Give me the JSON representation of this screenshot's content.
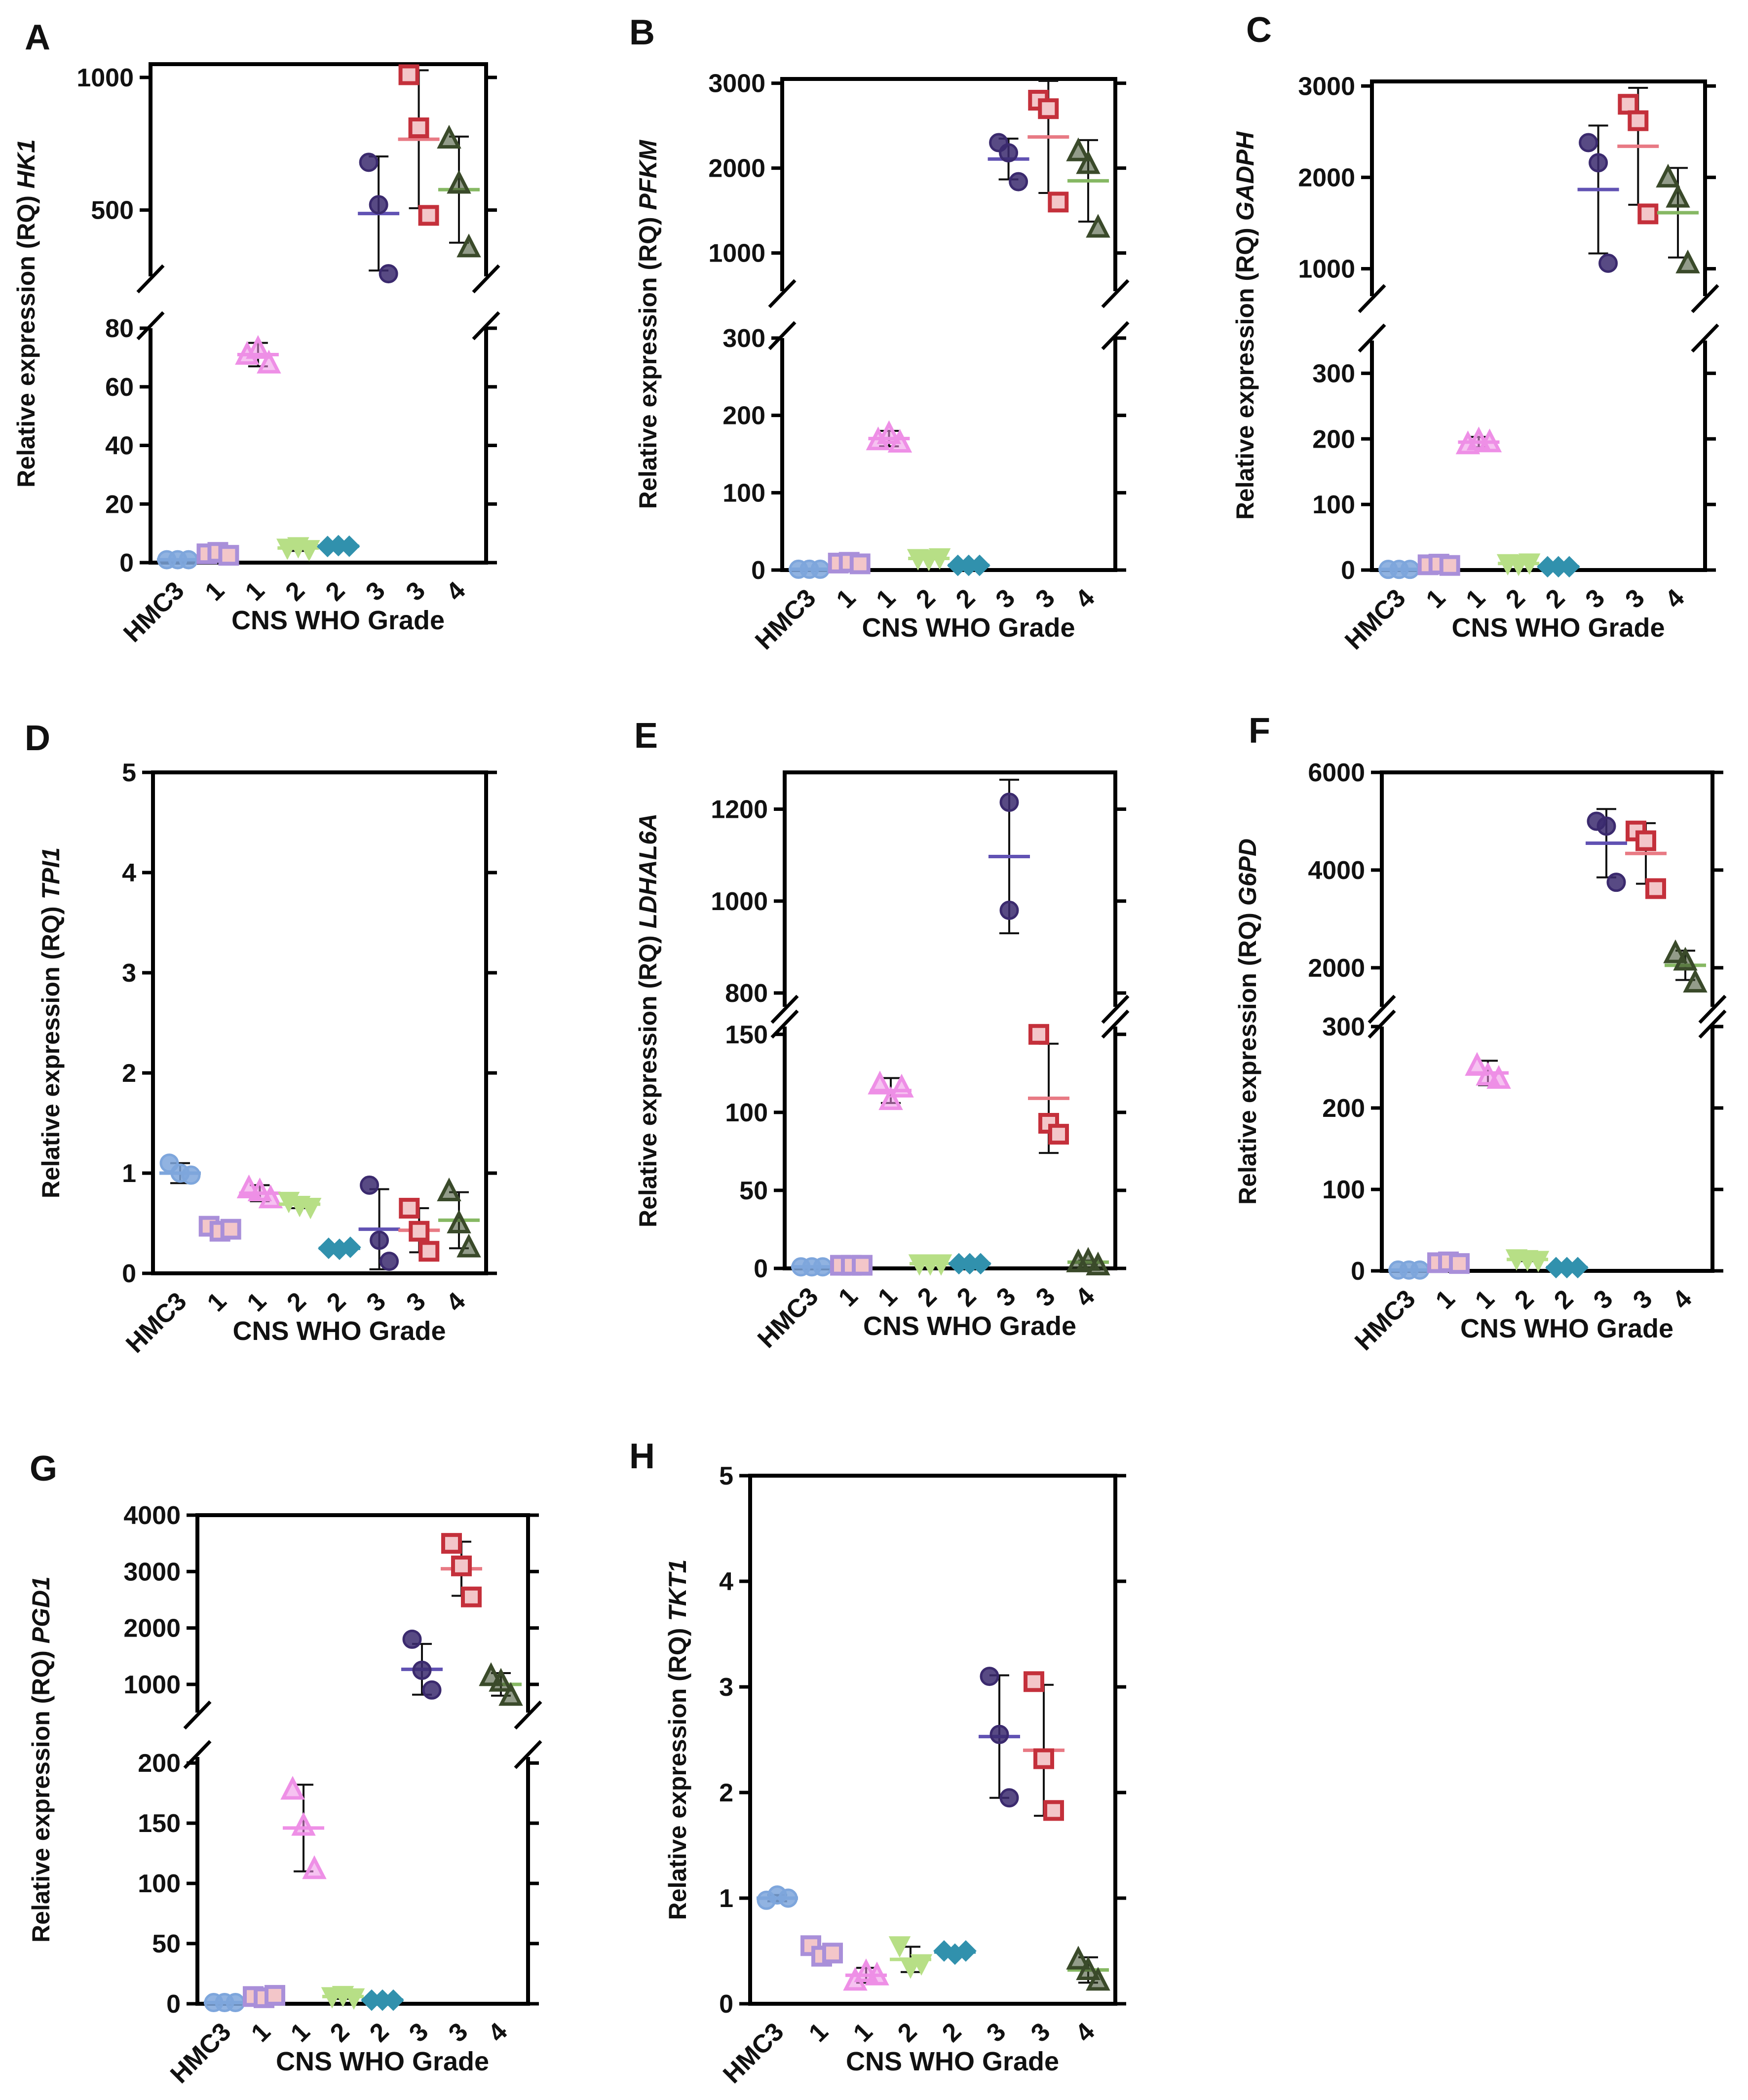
{
  "figure": {
    "colors": {
      "HMC3": "#7ea6dc",
      "G1a": "#a98fd9",
      "G1b": "#ee8fe6",
      "G2a": "#b7df86",
      "G2b": "#3191ad",
      "G3a": "#3b2a6e",
      "G3b": "#c4303b",
      "G4": "#3a4a2a",
      "G3a_mean": "#6152b3",
      "G3b_mean": "#e87a84",
      "G4_mean": "#86b863"
    },
    "shapes": [
      "circle",
      "square",
      "triangle",
      "triangle-down",
      "diamond",
      "circle",
      "square",
      "triangle"
    ]
  },
  "chart_data": [
    {
      "panel": "A",
      "type": "scatter",
      "gene": "HK1",
      "ylabel_prefix": "Relative expression (RQ) ",
      "xlabel": "CNS WHO Grade",
      "categories": [
        "HMC3",
        "1",
        "1",
        "2",
        "2",
        "3",
        "3",
        "4"
      ],
      "broken_axis": true,
      "lower_range": [
        0,
        80
      ],
      "lower_ticks": [
        0,
        20,
        40,
        60,
        80
      ],
      "upper_range": [
        250,
        1050
      ],
      "upper_ticks": [
        500,
        1000
      ],
      "series": [
        {
          "group": 0,
          "values": [
            1,
            1,
            1
          ],
          "mean": 1,
          "sd": 0
        },
        {
          "group": 1,
          "values": [
            3,
            3.5,
            2.5
          ],
          "mean": 3,
          "sd": 0.5
        },
        {
          "group": 2,
          "values": [
            71,
            73,
            68
          ],
          "mean": 71,
          "sd": 4
        },
        {
          "group": 3,
          "values": [
            5,
            5.5,
            4.5
          ],
          "mean": 5,
          "sd": 1
        },
        {
          "group": 4,
          "values": [
            5.5,
            5.8,
            5.6
          ],
          "mean": 5.6,
          "sd": 0.3
        },
        {
          "group": 5,
          "values": [
            680,
            520,
            260
          ],
          "mean": 487,
          "sd": 215
        },
        {
          "group": 6,
          "values": [
            1010,
            810,
            480
          ],
          "mean": 767,
          "sd": 260
        },
        {
          "group": 7,
          "values": [
            770,
            600,
            360
          ],
          "mean": 577,
          "sd": 200
        }
      ]
    },
    {
      "panel": "B",
      "type": "scatter",
      "gene": "PFKM",
      "ylabel_prefix": "Relative expression (RQ) ",
      "xlabel": "CNS WHO Grade",
      "categories": [
        "HMC3",
        "1",
        "1",
        "2",
        "2",
        "3",
        "3",
        "4"
      ],
      "broken_axis": true,
      "lower_range": [
        0,
        300
      ],
      "lower_ticks": [
        0,
        100,
        200,
        300
      ],
      "upper_range": [
        550,
        3050
      ],
      "upper_ticks": [
        1000,
        2000,
        3000
      ],
      "series": [
        {
          "group": 0,
          "values": [
            1,
            1,
            1
          ],
          "mean": 1,
          "sd": 0
        },
        {
          "group": 1,
          "values": [
            9,
            10,
            8
          ],
          "mean": 9,
          "sd": 1
        },
        {
          "group": 2,
          "values": [
            168,
            176,
            165
          ],
          "mean": 170,
          "sd": 10
        },
        {
          "group": 3,
          "values": [
            15,
            14,
            16
          ],
          "mean": 15,
          "sd": 1
        },
        {
          "group": 4,
          "values": [
            6,
            6,
            6
          ],
          "mean": 6,
          "sd": 0
        },
        {
          "group": 5,
          "values": [
            2300,
            2180,
            1840
          ],
          "mean": 2107,
          "sd": 240
        },
        {
          "group": 6,
          "values": [
            2800,
            2700,
            1600
          ],
          "mean": 2367,
          "sd": 660
        },
        {
          "group": 7,
          "values": [
            2200,
            2050,
            1300
          ],
          "mean": 1850,
          "sd": 480
        }
      ]
    },
    {
      "panel": "C",
      "type": "scatter",
      "gene": "GADPH",
      "ylabel_prefix": "Relative expression (RQ) ",
      "xlabel": "CNS WHO Grade",
      "categories": [
        "HMC3",
        "1",
        "1",
        "2",
        "2",
        "3",
        "3",
        "4"
      ],
      "broken_axis": true,
      "lower_range": [
        0,
        350
      ],
      "lower_ticks": [
        0,
        100,
        200,
        300
      ],
      "upper_range": [
        700,
        3050
      ],
      "upper_ticks": [
        1000,
        2000,
        3000
      ],
      "series": [
        {
          "group": 0,
          "values": [
            1,
            1,
            1
          ],
          "mean": 1,
          "sd": 0
        },
        {
          "group": 1,
          "values": [
            8,
            9,
            7
          ],
          "mean": 8,
          "sd": 1
        },
        {
          "group": 2,
          "values": [
            192,
            198,
            195
          ],
          "mean": 195,
          "sd": 8
        },
        {
          "group": 3,
          "values": [
            10,
            9,
            11
          ],
          "mean": 10,
          "sd": 1
        },
        {
          "group": 4,
          "values": [
            5,
            5,
            5
          ],
          "mean": 5,
          "sd": 0
        },
        {
          "group": 5,
          "values": [
            2380,
            2160,
            1060
          ],
          "mean": 1867,
          "sd": 700
        },
        {
          "group": 6,
          "values": [
            2800,
            2620,
            1600
          ],
          "mean": 2340,
          "sd": 640
        },
        {
          "group": 7,
          "values": [
            2000,
            1780,
            1060
          ],
          "mean": 1613,
          "sd": 490
        }
      ]
    },
    {
      "panel": "D",
      "type": "scatter",
      "gene": "TPI1",
      "ylabel_prefix": "Relative expression (RQ) ",
      "xlabel": "CNS WHO Grade",
      "categories": [
        "HMC3",
        "1",
        "1",
        "2",
        "2",
        "3",
        "3",
        "4"
      ],
      "broken_axis": false,
      "lower_range": [
        0,
        5
      ],
      "lower_ticks": [
        0,
        1,
        2,
        3,
        4,
        5
      ],
      "series": [
        {
          "group": 0,
          "values": [
            1.1,
            1.0,
            0.98
          ],
          "mean": 1.0,
          "sd": 0.1
        },
        {
          "group": 1,
          "values": [
            0.47,
            0.42,
            0.44
          ],
          "mean": 0.44,
          "sd": 0.03
        },
        {
          "group": 2,
          "values": [
            0.85,
            0.82,
            0.75
          ],
          "mean": 0.8,
          "sd": 0.08
        },
        {
          "group": 3,
          "values": [
            0.72,
            0.68,
            0.66
          ],
          "mean": 0.69,
          "sd": 0.04
        },
        {
          "group": 4,
          "values": [
            0.25,
            0.24,
            0.26
          ],
          "mean": 0.25,
          "sd": 0.01
        },
        {
          "group": 5,
          "values": [
            0.88,
            0.33,
            0.12
          ],
          "mean": 0.44,
          "sd": 0.4
        },
        {
          "group": 6,
          "values": [
            0.65,
            0.42,
            0.22
          ],
          "mean": 0.43,
          "sd": 0.22
        },
        {
          "group": 7,
          "values": [
            0.82,
            0.5,
            0.26
          ],
          "mean": 0.53,
          "sd": 0.28
        }
      ]
    },
    {
      "panel": "E",
      "type": "scatter",
      "gene": "LDHAL6A",
      "ylabel_prefix": "Relative expression (RQ) ",
      "xlabel": "CNS WHO Grade",
      "categories": [
        "HMC3",
        "1",
        "1",
        "2",
        "2",
        "3",
        "3",
        "4"
      ],
      "broken_axis": true,
      "lower_range": [
        0,
        155
      ],
      "lower_ticks": [
        0,
        50,
        100,
        150
      ],
      "upper_range": [
        770,
        1280
      ],
      "upper_ticks": [
        800,
        1000,
        1200
      ],
      "series": [
        {
          "group": 0,
          "values": [
            1,
            1,
            1
          ],
          "mean": 1,
          "sd": 0
        },
        {
          "group": 1,
          "values": [
            2,
            2,
            2
          ],
          "mean": 2,
          "sd": 0
        },
        {
          "group": 2,
          "values": [
            118,
            108,
            116
          ],
          "mean": 114,
          "sd": 8
        },
        {
          "group": 3,
          "values": [
            3,
            3,
            3
          ],
          "mean": 3,
          "sd": 0
        },
        {
          "group": 4,
          "values": [
            3,
            3,
            3
          ],
          "mean": 3,
          "sd": 0
        },
        {
          "group": 5,
          "values": [
            1215,
            980
          ],
          "mean": 1097,
          "sd": 167
        },
        {
          "group": 6,
          "values": [
            150,
            93,
            86
          ],
          "mean": 109,
          "sd": 35
        },
        {
          "group": 7,
          "values": [
            4,
            5,
            2
          ],
          "mean": 4,
          "sd": 1
        }
      ]
    },
    {
      "panel": "F",
      "type": "scatter",
      "gene": "G6PD",
      "ylabel_prefix": "Relative expression (RQ) ",
      "xlabel": "CNS WHO Grade",
      "categories": [
        "HMC3",
        "1",
        "1",
        "2",
        "2",
        "3",
        "3",
        "4"
      ],
      "broken_axis": true,
      "lower_range": [
        0,
        300
      ],
      "lower_ticks": [
        0,
        100,
        200,
        300
      ],
      "upper_range": [
        1200,
        6000
      ],
      "upper_ticks": [
        2000,
        4000,
        6000
      ],
      "series": [
        {
          "group": 0,
          "values": [
            1,
            1,
            1
          ],
          "mean": 1,
          "sd": 0
        },
        {
          "group": 1,
          "values": [
            10,
            11,
            9
          ],
          "mean": 10,
          "sd": 1
        },
        {
          "group": 2,
          "values": [
            252,
            240,
            236
          ],
          "mean": 243,
          "sd": 15
        },
        {
          "group": 3,
          "values": [
            15,
            14,
            13
          ],
          "mean": 14,
          "sd": 2
        },
        {
          "group": 4,
          "values": [
            4,
            4,
            4
          ],
          "mean": 4,
          "sd": 0
        },
        {
          "group": 5,
          "values": [
            5000,
            4900,
            3750
          ],
          "mean": 4550,
          "sd": 700
        },
        {
          "group": 6,
          "values": [
            4800,
            4600,
            3620
          ],
          "mean": 4340,
          "sd": 620
        },
        {
          "group": 7,
          "values": [
            2300,
            2150,
            1700
          ],
          "mean": 2050,
          "sd": 300
        }
      ]
    },
    {
      "panel": "G",
      "type": "scatter",
      "gene": "PGD1",
      "ylabel_prefix": "Relative expression (RQ) ",
      "xlabel": "CNS WHO Grade",
      "categories": [
        "HMC3",
        "1",
        "1",
        "2",
        "2",
        "3",
        "3",
        "4"
      ],
      "broken_axis": true,
      "lower_range": [
        0,
        205
      ],
      "lower_ticks": [
        0,
        50,
        100,
        150,
        200
      ],
      "upper_range": [
        500,
        4000
      ],
      "upper_ticks": [
        1000,
        2000,
        3000,
        4000
      ],
      "series": [
        {
          "group": 0,
          "values": [
            1,
            1,
            1
          ],
          "mean": 1,
          "sd": 0
        },
        {
          "group": 1,
          "values": [
            6,
            5,
            7
          ],
          "mean": 6,
          "sd": 1
        },
        {
          "group": 2,
          "values": [
            178,
            148,
            112
          ],
          "mean": 146,
          "sd": 36
        },
        {
          "group": 3,
          "values": [
            6,
            7,
            5
          ],
          "mean": 6,
          "sd": 2
        },
        {
          "group": 4,
          "values": [
            3,
            3,
            3
          ],
          "mean": 3,
          "sd": 0
        },
        {
          "group": 5,
          "values": [
            1800,
            1250,
            900
          ],
          "mean": 1267,
          "sd": 450
        },
        {
          "group": 6,
          "values": [
            3500,
            3100,
            2550
          ],
          "mean": 3050,
          "sd": 480
        },
        {
          "group": 7,
          "values": [
            1150,
            1050,
            800
          ],
          "mean": 1000,
          "sd": 200
        }
      ]
    },
    {
      "panel": "H",
      "type": "scatter",
      "gene": "TKT1",
      "ylabel_prefix": "Relative expression (RQ) ",
      "xlabel": "CNS WHO Grade",
      "categories": [
        "HMC3",
        "1",
        "1",
        "2",
        "2",
        "3",
        "3",
        "4"
      ],
      "broken_axis": false,
      "lower_range": [
        0,
        5
      ],
      "lower_ticks": [
        0,
        1,
        2,
        3,
        4,
        5
      ],
      "series": [
        {
          "group": 0,
          "values": [
            0.98,
            1.03,
            1.0
          ],
          "mean": 1.0,
          "sd": 0.03
        },
        {
          "group": 1,
          "values": [
            0.55,
            0.45,
            0.48
          ],
          "mean": 0.49,
          "sd": 0.05
        },
        {
          "group": 2,
          "values": [
            0.22,
            0.3,
            0.27
          ],
          "mean": 0.27,
          "sd": 0.07
        },
        {
          "group": 3,
          "values": [
            0.55,
            0.35,
            0.38
          ],
          "mean": 0.42,
          "sd": 0.12
        },
        {
          "group": 4,
          "values": [
            0.5,
            0.47,
            0.5
          ],
          "mean": 0.49,
          "sd": 0.03
        },
        {
          "group": 5,
          "values": [
            3.1,
            2.55,
            1.95
          ],
          "mean": 2.53,
          "sd": 0.58
        },
        {
          "group": 6,
          "values": [
            3.05,
            2.32,
            1.83
          ],
          "mean": 2.4,
          "sd": 0.62
        },
        {
          "group": 7,
          "values": [
            0.42,
            0.32,
            0.22
          ],
          "mean": 0.32,
          "sd": 0.12
        }
      ]
    }
  ]
}
